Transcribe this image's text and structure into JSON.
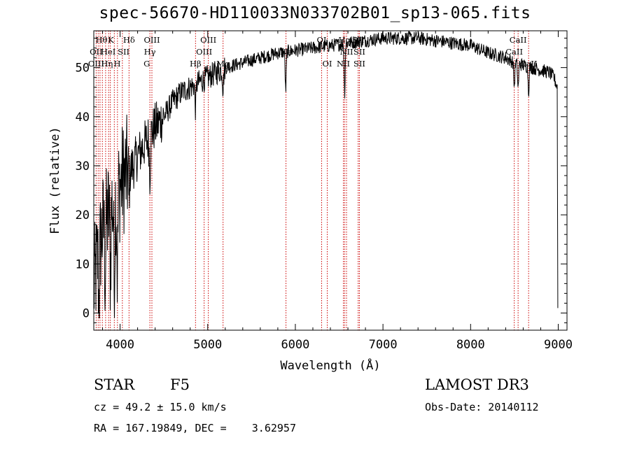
{
  "header": {
    "title": "spec-56670-HD110033N033702B01_sp13-065.fits"
  },
  "info": {
    "object_class": "STAR",
    "subclass": "F5",
    "survey": "LAMOST DR3",
    "cz": "cz = 49.2 ± 15.0 km/s",
    "obs_date": "Obs-Date: 20140112",
    "coords": "RA = 167.19849, DEC =    3.62957"
  },
  "colors": {
    "spectrum": "#000000",
    "marker": "#cc0000",
    "axes": "#000000"
  },
  "chart_data": {
    "type": "line",
    "title": "spec-56670-HD110033N033702B01_sp13-065.fits",
    "xlabel": "Wavelength (Å)",
    "ylabel": "Flux (relative)",
    "xlim": [
      3700,
      9100
    ],
    "ylim": [
      -3.5,
      57.5
    ],
    "xticks": [
      4000,
      5000,
      6000,
      7000,
      8000,
      9000
    ],
    "yticks": [
      0,
      10,
      20,
      30,
      40,
      50
    ],
    "grid": false,
    "series": [
      {
        "name": "flux",
        "x": [
          3700,
          3750,
          3800,
          3850,
          3900,
          3950,
          4000,
          4050,
          4100,
          4150,
          4200,
          4300,
          4400,
          4500,
          4600,
          4700,
          4800,
          4900,
          5000,
          5200,
          5400,
          5600,
          5800,
          6000,
          6200,
          6400,
          6600,
          6800,
          7000,
          7200,
          7400,
          7600,
          7800,
          8000,
          8200,
          8400,
          8500,
          8600,
          8700,
          8800,
          8900,
          8950,
          8990
        ],
        "values": [
          5,
          12,
          17,
          19,
          22,
          24,
          26,
          28,
          29,
          30,
          32,
          35,
          38,
          40,
          43,
          45,
          46,
          47,
          48,
          50,
          51,
          52,
          53,
          53.5,
          54,
          54.5,
          55,
          55.5,
          56,
          56,
          56,
          55.5,
          55,
          54.5,
          53,
          52,
          51,
          50.5,
          50,
          49.5,
          49,
          48,
          46
        ]
      }
    ],
    "absorption_features": [
      {
        "x": 3760,
        "depth": 12
      },
      {
        "x": 3830,
        "depth": 10
      },
      {
        "x": 3890,
        "depth": 12
      },
      {
        "x": 3934,
        "depth": 18
      },
      {
        "x": 3969,
        "depth": 16
      },
      {
        "x": 4102,
        "depth": 6
      },
      {
        "x": 4340,
        "depth": 8
      },
      {
        "x": 4861,
        "depth": 5
      },
      {
        "x": 5175,
        "depth": 4
      },
      {
        "x": 5890,
        "depth": 8
      },
      {
        "x": 6563,
        "depth": 10
      },
      {
        "x": 8498,
        "depth": 5
      },
      {
        "x": 8542,
        "depth": 5
      },
      {
        "x": 8662,
        "depth": 5
      }
    ],
    "line_markers": [
      3727,
      3750,
      3771,
      3798,
      3835,
      3869,
      3889,
      3934,
      3970,
      4026,
      4102,
      4340,
      4363,
      4861,
      4959,
      5007,
      5175,
      5893,
      6300,
      6364,
      6548,
      6563,
      6584,
      6717,
      6731,
      8498,
      8542,
      8662
    ],
    "line_labels": [
      {
        "text": "Hθ",
        "x": 3788,
        "row": 0
      },
      {
        "text": "OII",
        "x": 3727,
        "row": 1
      },
      {
        "text": "OIII",
        "x": 3727,
        "row": 2
      },
      {
        "text": "K",
        "x": 3895,
        "row": 0
      },
      {
        "text": "HeI",
        "x": 3865,
        "row": 1
      },
      {
        "text": "Hη",
        "x": 3850,
        "row": 2
      },
      {
        "text": "SII",
        "x": 4040,
        "row": 1
      },
      {
        "text": "H",
        "x": 3968,
        "row": 2
      },
      {
        "text": "Hδ",
        "x": 4102,
        "row": 0
      },
      {
        "text": "OIII",
        "x": 4363,
        "row": 0
      },
      {
        "text": "Hγ",
        "x": 4340,
        "row": 1
      },
      {
        "text": "G",
        "x": 4305,
        "row": 2
      },
      {
        "text": "OIII",
        "x": 5007,
        "row": 0
      },
      {
        "text": "OIII",
        "x": 4959,
        "row": 1
      },
      {
        "text": "Hβ",
        "x": 4861,
        "row": 2
      },
      {
        "text": "Mg",
        "x": 5175,
        "row": 2
      },
      {
        "text": "Na",
        "x": 5893,
        "row": 1
      },
      {
        "text": "OI",
        "x": 6300,
        "row": 0
      },
      {
        "text": "OI",
        "x": 6364,
        "row": 2
      },
      {
        "text": "Hα",
        "x": 6563,
        "row": 0
      },
      {
        "text": "NII",
        "x": 6584,
        "row": 1
      },
      {
        "text": "NII",
        "x": 6548,
        "row": 2
      },
      {
        "text": "SII",
        "x": 6717,
        "row": 0
      },
      {
        "text": "SII",
        "x": 6731,
        "row": 1
      },
      {
        "text": "SII",
        "x": 6731,
        "row": 2
      },
      {
        "text": "CaII",
        "x": 8542,
        "row": 0
      },
      {
        "text": "CaII",
        "x": 8498,
        "row": 1
      },
      {
        "text": "CaII",
        "x": 8662,
        "row": 2
      }
    ]
  }
}
